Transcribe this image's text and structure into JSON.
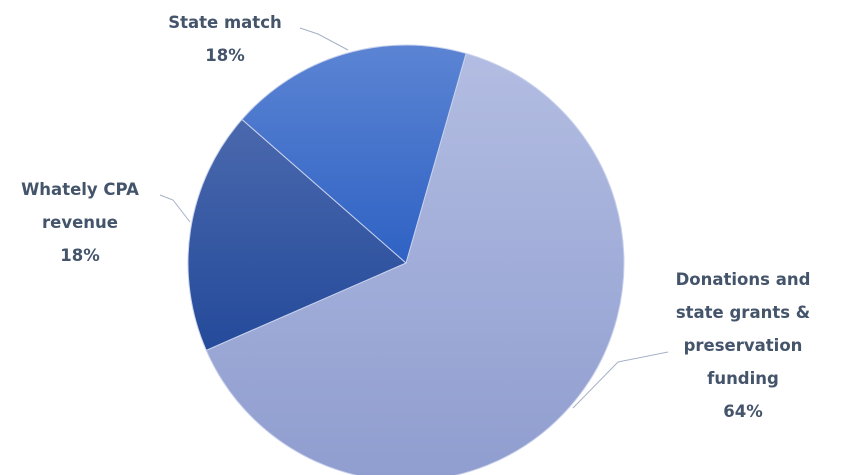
{
  "chart_data": {
    "type": "pie",
    "title": "",
    "slices": [
      {
        "label_lines": [
          "Donations and",
          "state grants &",
          "preservation",
          "funding"
        ],
        "value_label": "64%",
        "value": 64,
        "color": "#a3aed9"
      },
      {
        "label_lines": [
          "Whately CPA",
          "revenue"
        ],
        "value_label": "18%",
        "value": 18,
        "color": "#2f56a6"
      },
      {
        "label_lines": [
          "State match"
        ],
        "value_label": "18%",
        "value": 18,
        "color": "#4470cc"
      }
    ],
    "legend": "none",
    "data_labels": "outside-with-leader-lines"
  }
}
